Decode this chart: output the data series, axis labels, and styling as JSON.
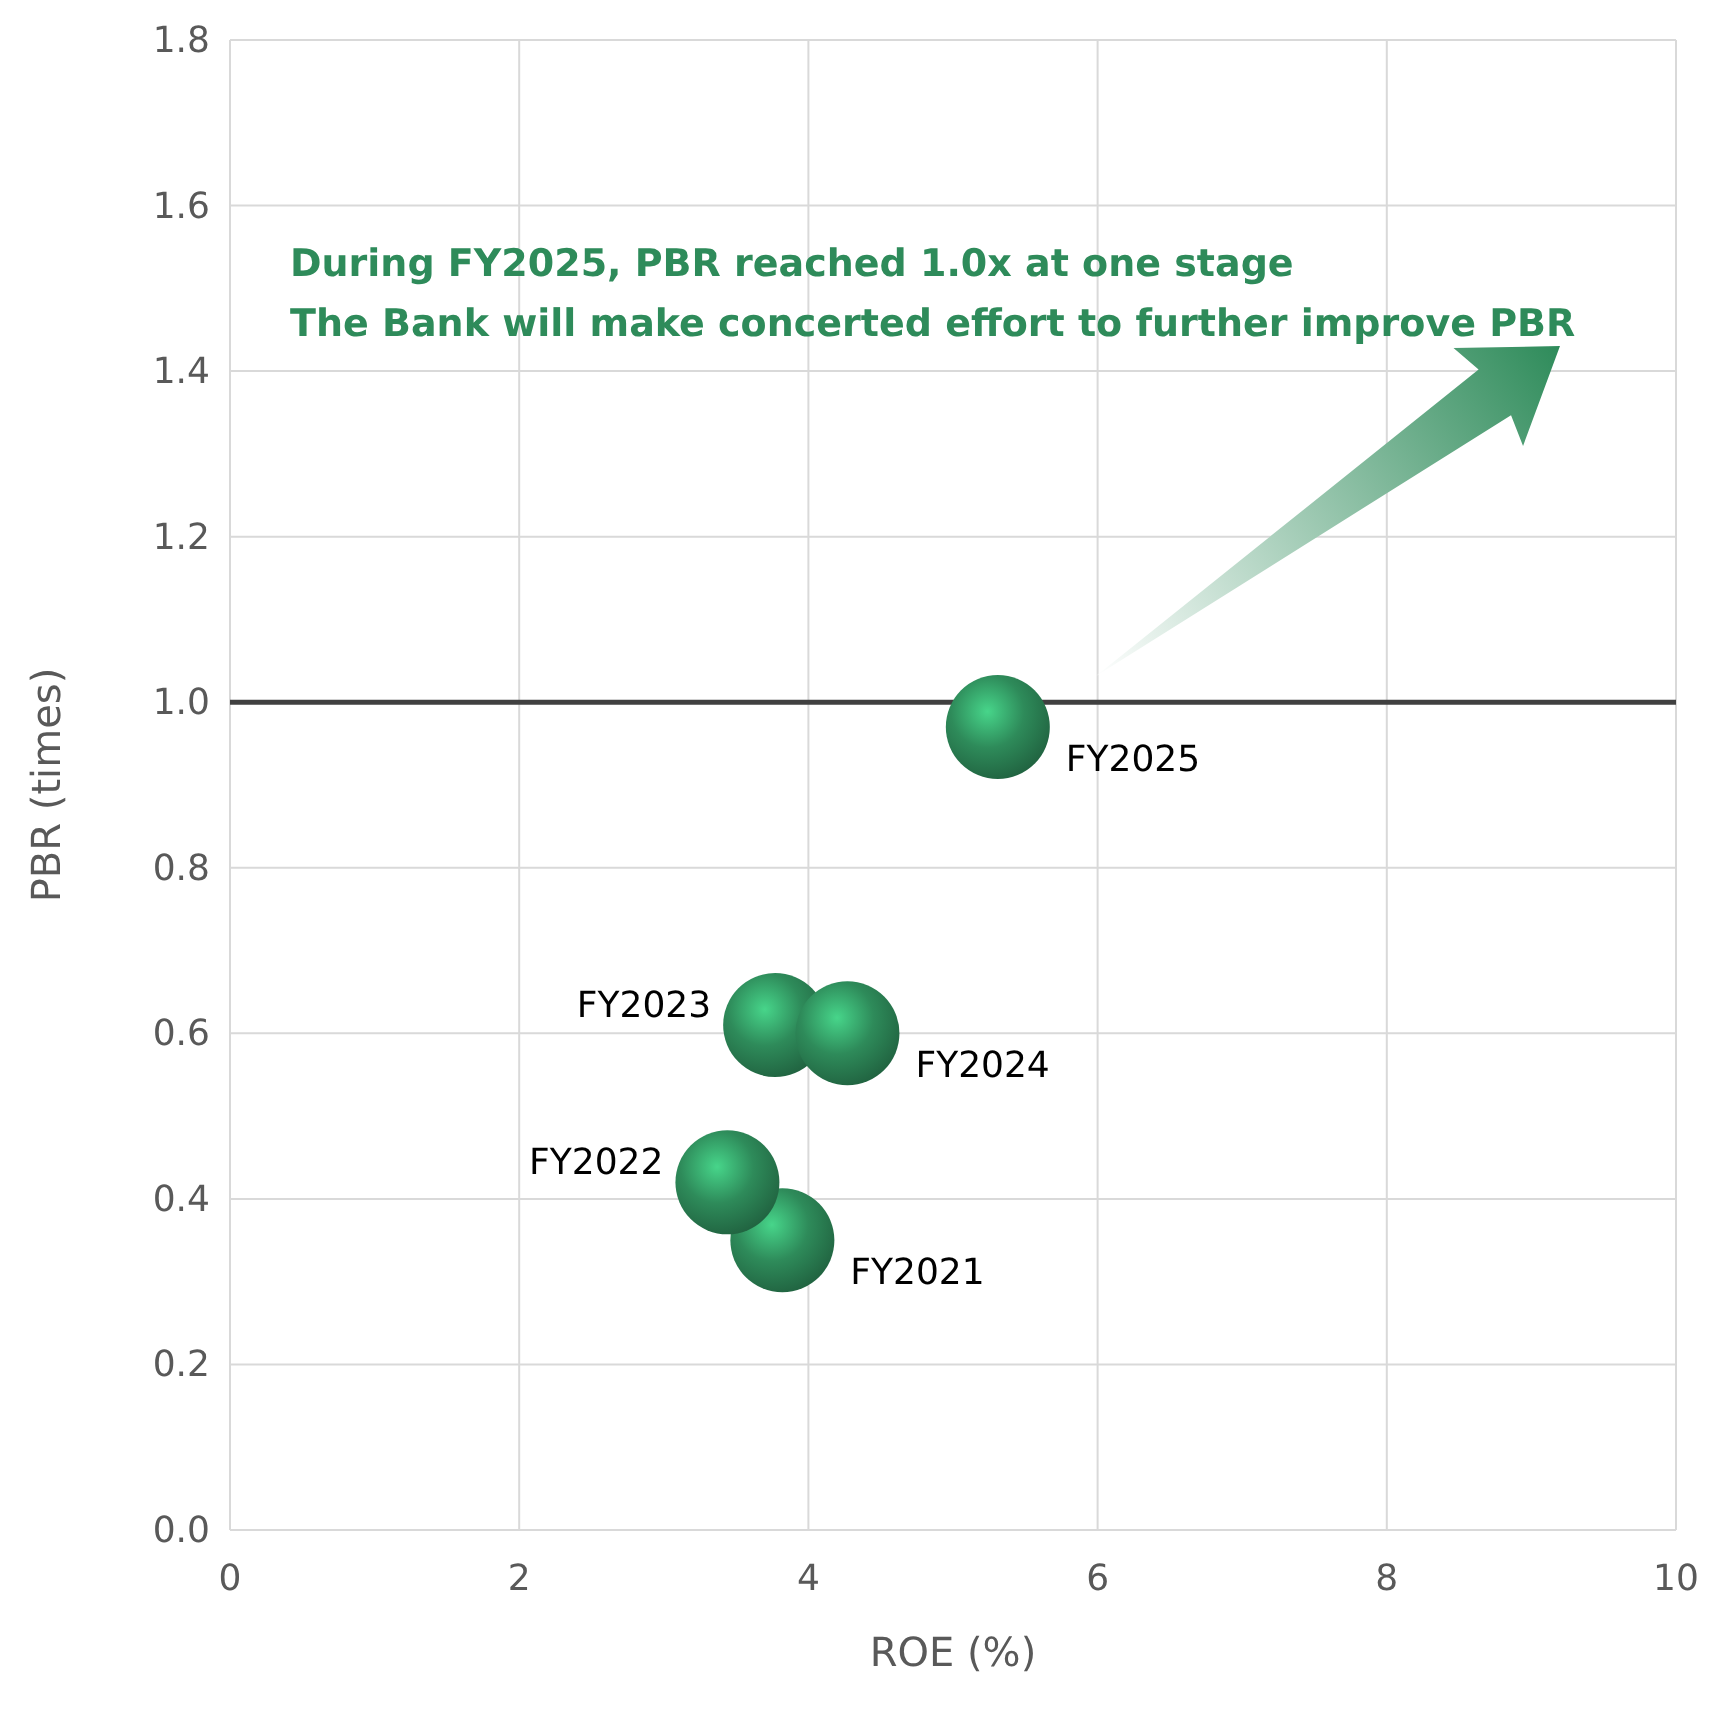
{
  "chart_data": {
    "type": "scatter",
    "xlabel": "ROE (%)",
    "ylabel": "PBR (times)",
    "x": [
      3.82,
      3.44,
      3.77,
      4.27,
      5.31
    ],
    "series": [
      {
        "color": "#2e8b5a",
        "values": [
          0.35,
          0.42,
          0.61,
          0.6,
          0.97
        ]
      }
    ],
    "xlim": [
      0,
      10
    ],
    "xticks": [
      0,
      2,
      4,
      6,
      8,
      10
    ],
    "ylim": [
      0,
      1.8
    ],
    "yticks": [
      {
        "value": 0,
        "label": "0.0"
      },
      {
        "value": 0.2,
        "label": "0.2"
      },
      {
        "value": 0.4,
        "label": "0.4"
      },
      {
        "value": 0.6,
        "label": "0.6"
      },
      {
        "value": 0.8,
        "label": "0.8"
      },
      {
        "value": 1,
        "label": "1.0"
      },
      {
        "value": 1.2,
        "label": "1.2"
      },
      {
        "value": 1.4,
        "label": "1.4"
      },
      {
        "value": 1.6,
        "label": "1.6"
      },
      {
        "value": 1.8,
        "label": "1.8"
      }
    ],
    "grid": true,
    "marker": "circle",
    "ref_lines": [
      {
        "axis": "y",
        "value": 1.0,
        "color": "#404040"
      }
    ],
    "annotations": [
      "During FY2025, PBR reached 1.0x at one stage",
      "The Bank will make concerted effort to further improve PBR",
      {
        "text": "FY2021",
        "x": 3.82,
        "y": 0.35
      },
      {
        "text": "FY2022",
        "x": 3.44,
        "y": 0.42
      },
      {
        "text": "FY2023",
        "x": 3.77,
        "y": 0.61
      },
      {
        "text": "FY2024",
        "x": 4.27,
        "y": 0.6
      },
      {
        "text": "FY2025",
        "x": 5.31,
        "y": 0.97
      }
    ]
  }
}
